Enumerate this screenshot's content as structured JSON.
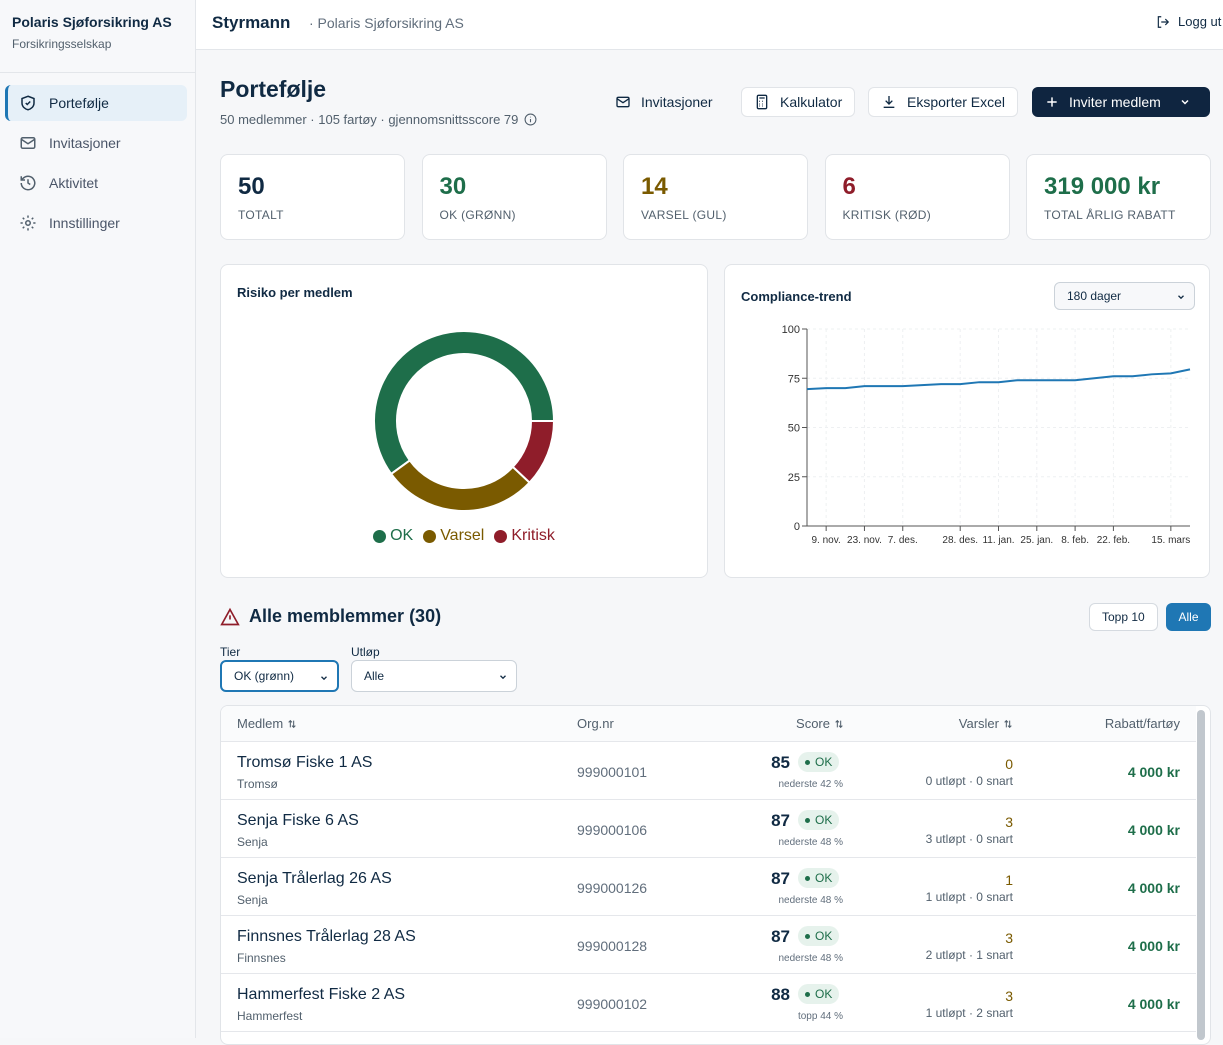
{
  "sidebar": {
    "company": "Polaris Sjøforsikring AS",
    "subtitle": "Forsikringsselskap",
    "nav": [
      "Portefølje",
      "Invitasjoner",
      "Aktivitet",
      "Innstillinger"
    ]
  },
  "header": {
    "app": "Styrmann",
    "org": "· Polaris Sjøforsikring AS",
    "logout": "Logg ut"
  },
  "page": {
    "title": "Portefølje",
    "summary": "50 medlemmer · 105 fartøy · gjennomsnittsscore 79",
    "buttons": [
      "Invitasjoner",
      "Kalkulator",
      "Eksporter Excel",
      "Inviter medlem"
    ]
  },
  "stats": [
    {
      "value": 50,
      "label": "TOTALT",
      "color": "#102a43"
    },
    {
      "value": 30,
      "label": "OK (GRØNN)",
      "color": "#1e6e4a"
    },
    {
      "value": 14,
      "label": "VARSEL (GUL)",
      "color": "#7a5a00"
    },
    {
      "value": 6,
      "label": "KRITISK (RØD)",
      "color": "#8f1d2a"
    },
    {
      "value": "319 000 kr",
      "label": "TOTAL ÅRLIG RABATT",
      "color": "#1e6e4a"
    }
  ],
  "chart_data": [
    {
      "type": "pie",
      "title": "Risiko per medlem",
      "donut": true,
      "categories": [
        "OK",
        "Varsel",
        "Kritisk"
      ],
      "values": [
        30,
        14,
        6
      ],
      "colors": [
        "#1e6e4a",
        "#7a5a00",
        "#8f1d2a"
      ]
    },
    {
      "type": "line",
      "title": "Compliance-trend",
      "range_select": "180 dager",
      "categories": [
        null,
        "9. nov.",
        null,
        "23. nov.",
        null,
        "7. des.",
        null,
        null,
        "28. des.",
        null,
        "11. jan.",
        null,
        "25. jan.",
        null,
        "8. feb.",
        null,
        "22. feb.",
        null,
        null,
        "15. mars",
        null
      ],
      "series": [
        {
          "name": "Compliance",
          "color": "#1f77b4",
          "values": [
            69.5,
            70,
            70,
            71,
            71,
            71,
            71.5,
            72,
            72,
            73,
            73,
            74,
            74,
            74,
            74,
            75,
            76,
            76,
            77,
            77.5,
            79.5
          ]
        }
      ],
      "ylim": [
        0,
        100
      ],
      "yticks": [
        0,
        25,
        50,
        75,
        100
      ],
      "grid": true
    }
  ],
  "members": {
    "title": "Alle memblemmer (30)",
    "toggles": [
      "Topp 10",
      "Alle"
    ],
    "filters": [
      {
        "label": "Tier",
        "value": "OK (grønn)"
      },
      {
        "label": "Utløp",
        "value": "Alle"
      }
    ],
    "columns": [
      "Medlem",
      "Org.nr",
      "Score",
      "Varsler",
      "Rabatt/fartøy"
    ],
    "rows": [
      {
        "name": "Tromsø Fiske 1 AS",
        "city": "Tromsø",
        "org": "999000101",
        "score": 85,
        "tier": "OK",
        "percentile": "nederste 42 %",
        "alerts": 0,
        "alerts_detail": "0 utløpt · 0 snart",
        "discount": "4 000 kr"
      },
      {
        "name": "Senja Fiske 6 AS",
        "city": "Senja",
        "org": "999000106",
        "score": 87,
        "tier": "OK",
        "percentile": "nederste 48 %",
        "alerts": 3,
        "alerts_detail": "3 utløpt · 0 snart",
        "discount": "4 000 kr"
      },
      {
        "name": "Senja Trålerlag 26 AS",
        "city": "Senja",
        "org": "999000126",
        "score": 87,
        "tier": "OK",
        "percentile": "nederste 48 %",
        "alerts": 1,
        "alerts_detail": "1 utløpt · 0 snart",
        "discount": "4 000 kr"
      },
      {
        "name": "Finnsnes Trålerlag 28 AS",
        "city": "Finnsnes",
        "org": "999000128",
        "score": 87,
        "tier": "OK",
        "percentile": "nederste 48 %",
        "alerts": 3,
        "alerts_detail": "2 utløpt · 1 snart",
        "discount": "4 000 kr"
      },
      {
        "name": "Hammerfest Fiske 2 AS",
        "city": "Hammerfest",
        "org": "999000102",
        "score": 88,
        "tier": "OK",
        "percentile": "topp 44 %",
        "alerts": 3,
        "alerts_detail": "1 utløpt · 2 snart",
        "discount": "4 000 kr"
      }
    ]
  }
}
